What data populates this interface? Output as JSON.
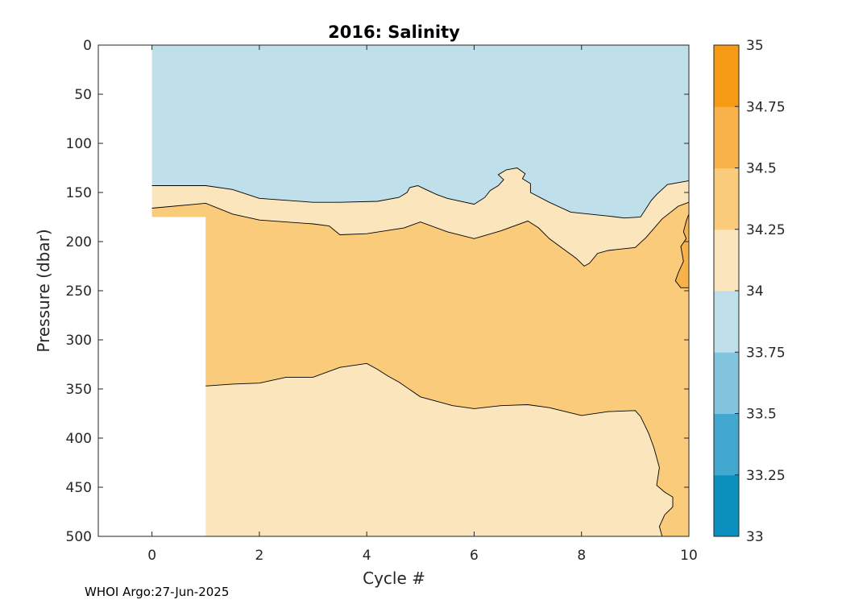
{
  "chart_data": {
    "type": "contour",
    "title": "2016:  Salinity",
    "xlabel": "Cycle #",
    "ylabel": "Pressure (dbar)",
    "xlim": [
      -1,
      10
    ],
    "ylim": [
      500,
      0
    ],
    "x_ticks": [
      0,
      2,
      4,
      6,
      8,
      10
    ],
    "y_ticks": [
      0,
      50,
      100,
      150,
      200,
      250,
      300,
      350,
      400,
      450,
      500
    ],
    "grid": false,
    "colorbar": {
      "levels": [
        33,
        33.25,
        33.5,
        33.75,
        34,
        34.25,
        34.5,
        34.75,
        35
      ],
      "tick_labels": [
        "33",
        "33.25",
        "33.5",
        "33.75",
        "34",
        "34.25",
        "34.5",
        "34.75",
        "35"
      ],
      "colors": [
        "#0b8fbd",
        "#42a8cf",
        "#82c4de",
        "#bfe0eb",
        "#fbe5bd",
        "#f9cb7b",
        "#f8b24a",
        "#f79b14"
      ]
    },
    "regions": [
      {
        "band": "33.75-34",
        "color": "#bfe0eb",
        "polygon": [
          [
            0,
            0
          ],
          [
            10,
            0
          ],
          [
            10,
            138
          ],
          [
            9.6,
            142
          ],
          [
            9.4,
            152
          ],
          [
            9.3,
            158
          ],
          [
            9.1,
            175
          ],
          [
            8.8,
            176
          ],
          [
            8.5,
            174
          ],
          [
            7.8,
            170
          ],
          [
            7.4,
            160
          ],
          [
            7.05,
            150
          ],
          [
            7.05,
            141
          ],
          [
            6.9,
            136
          ],
          [
            6.95,
            131
          ],
          [
            6.8,
            125
          ],
          [
            6.6,
            127
          ],
          [
            6.45,
            132
          ],
          [
            6.55,
            137
          ],
          [
            6.45,
            143
          ],
          [
            6.3,
            148
          ],
          [
            6.2,
            155
          ],
          [
            6.0,
            162
          ],
          [
            5.5,
            156
          ],
          [
            5.3,
            152
          ],
          [
            5.1,
            147
          ],
          [
            4.95,
            143
          ],
          [
            4.8,
            145
          ],
          [
            4.75,
            150
          ],
          [
            4.6,
            155
          ],
          [
            4.2,
            159
          ],
          [
            3.5,
            160
          ],
          [
            3.0,
            160
          ],
          [
            2.0,
            156
          ],
          [
            1.5,
            147
          ],
          [
            1.0,
            143
          ],
          [
            0.5,
            143
          ],
          [
            0,
            143
          ]
        ]
      },
      {
        "band": "34.25-34.5",
        "color": "#f9cb7b",
        "polygon": [
          [
            0,
            166
          ],
          [
            1.0,
            161
          ],
          [
            1.5,
            172
          ],
          [
            2.0,
            178
          ],
          [
            3.0,
            182
          ],
          [
            3.3,
            184
          ],
          [
            3.5,
            193
          ],
          [
            4.0,
            192
          ],
          [
            4.7,
            186
          ],
          [
            5.0,
            180
          ],
          [
            5.5,
            190
          ],
          [
            6.0,
            197
          ],
          [
            6.5,
            189
          ],
          [
            7.0,
            179
          ],
          [
            7.2,
            186
          ],
          [
            7.4,
            197
          ],
          [
            7.6,
            205
          ],
          [
            7.9,
            217
          ],
          [
            8.05,
            225
          ],
          [
            8.15,
            222
          ],
          [
            8.3,
            212
          ],
          [
            8.5,
            209
          ],
          [
            9.0,
            206
          ],
          [
            9.2,
            196
          ],
          [
            9.5,
            177
          ],
          [
            9.8,
            164
          ],
          [
            10,
            160
          ],
          [
            10,
            500
          ],
          [
            9.5,
            500
          ],
          [
            9.45,
            490
          ],
          [
            9.55,
            478
          ],
          [
            9.7,
            470
          ],
          [
            9.7,
            460
          ],
          [
            9.55,
            455
          ],
          [
            9.4,
            448
          ],
          [
            9.45,
            430
          ],
          [
            9.35,
            410
          ],
          [
            9.25,
            395
          ],
          [
            9.1,
            378
          ],
          [
            9.0,
            372
          ],
          [
            8.5,
            373
          ],
          [
            8.0,
            377
          ],
          [
            7.7,
            373
          ],
          [
            7.4,
            369
          ],
          [
            7.0,
            366
          ],
          [
            6.5,
            367
          ],
          [
            6.0,
            370
          ],
          [
            5.6,
            367
          ],
          [
            5.0,
            358
          ],
          [
            4.6,
            343
          ],
          [
            4.4,
            337
          ],
          [
            4.2,
            330
          ],
          [
            4.0,
            324
          ],
          [
            3.5,
            328
          ],
          [
            3.0,
            338
          ],
          [
            2.5,
            338
          ],
          [
            2.0,
            344
          ],
          [
            1.5,
            345
          ],
          [
            1.0,
            347
          ],
          [
            1.0,
            175
          ],
          [
            0,
            175
          ]
        ]
      },
      {
        "band": "34.5-34.75",
        "color": "#f8b24a",
        "polygon": [
          [
            10,
            172
          ],
          [
            9.95,
            179
          ],
          [
            9.9,
            190
          ],
          [
            9.95,
            197
          ],
          [
            9.85,
            205
          ],
          [
            9.9,
            220
          ],
          [
            9.8,
            232
          ],
          [
            9.75,
            240
          ],
          [
            9.85,
            247
          ],
          [
            10,
            247
          ]
        ]
      }
    ],
    "contour_lines": [
      [
        [
          0,
          143
        ],
        [
          0.5,
          143
        ],
        [
          1.0,
          143
        ],
        [
          1.5,
          147
        ],
        [
          2.0,
          156
        ],
        [
          3.0,
          160
        ],
        [
          3.5,
          160
        ],
        [
          4.2,
          159
        ],
        [
          4.6,
          155
        ],
        [
          4.75,
          150
        ],
        [
          4.8,
          145
        ],
        [
          4.95,
          143
        ],
        [
          5.1,
          147
        ],
        [
          5.3,
          152
        ],
        [
          5.5,
          156
        ],
        [
          6.0,
          162
        ],
        [
          6.2,
          155
        ],
        [
          6.3,
          148
        ],
        [
          6.45,
          143
        ],
        [
          6.55,
          137
        ],
        [
          6.45,
          132
        ],
        [
          6.6,
          127
        ],
        [
          6.8,
          125
        ],
        [
          6.95,
          131
        ],
        [
          6.9,
          136
        ],
        [
          7.05,
          141
        ],
        [
          7.05,
          150
        ],
        [
          7.4,
          160
        ],
        [
          7.8,
          170
        ],
        [
          8.5,
          174
        ],
        [
          8.8,
          176
        ],
        [
          9.1,
          175
        ],
        [
          9.3,
          158
        ],
        [
          9.4,
          152
        ],
        [
          9.6,
          142
        ],
        [
          10,
          138
        ]
      ],
      [
        [
          0,
          166
        ],
        [
          1.0,
          161
        ],
        [
          1.5,
          172
        ],
        [
          2.0,
          178
        ],
        [
          3.0,
          182
        ],
        [
          3.3,
          184
        ],
        [
          3.5,
          193
        ],
        [
          4.0,
          192
        ],
        [
          4.7,
          186
        ],
        [
          5.0,
          180
        ],
        [
          5.5,
          190
        ],
        [
          6.0,
          197
        ],
        [
          6.5,
          189
        ],
        [
          7.0,
          179
        ],
        [
          7.2,
          186
        ],
        [
          7.4,
          197
        ],
        [
          7.6,
          205
        ],
        [
          7.9,
          217
        ],
        [
          8.05,
          225
        ],
        [
          8.15,
          222
        ],
        [
          8.3,
          212
        ],
        [
          8.5,
          209
        ],
        [
          9.0,
          206
        ],
        [
          9.2,
          196
        ],
        [
          9.5,
          177
        ],
        [
          9.8,
          164
        ],
        [
          10,
          160
        ]
      ],
      [
        [
          1.0,
          347
        ],
        [
          1.5,
          345
        ],
        [
          2.0,
          344
        ],
        [
          2.5,
          338
        ],
        [
          3.0,
          338
        ],
        [
          3.5,
          328
        ],
        [
          4.0,
          324
        ],
        [
          4.2,
          330
        ],
        [
          4.4,
          337
        ],
        [
          4.6,
          343
        ],
        [
          5.0,
          358
        ],
        [
          5.6,
          367
        ],
        [
          6.0,
          370
        ],
        [
          6.5,
          367
        ],
        [
          7.0,
          366
        ],
        [
          7.4,
          369
        ],
        [
          7.7,
          373
        ],
        [
          8.0,
          377
        ],
        [
          8.5,
          373
        ],
        [
          9.0,
          372
        ],
        [
          9.1,
          378
        ],
        [
          9.25,
          395
        ],
        [
          9.35,
          410
        ],
        [
          9.45,
          430
        ],
        [
          9.4,
          448
        ],
        [
          9.55,
          455
        ],
        [
          9.7,
          460
        ],
        [
          9.7,
          470
        ],
        [
          9.55,
          478
        ],
        [
          9.45,
          490
        ],
        [
          9.5,
          500
        ]
      ],
      [
        [
          10,
          172
        ],
        [
          9.95,
          179
        ],
        [
          9.9,
          190
        ],
        [
          9.95,
          197
        ],
        [
          9.85,
          205
        ],
        [
          9.9,
          220
        ],
        [
          9.8,
          232
        ],
        [
          9.75,
          240
        ],
        [
          9.85,
          247
        ],
        [
          10,
          247
        ]
      ]
    ],
    "data_region": {
      "x_start_top": 0,
      "x_start_below_175dbar": 1,
      "x_end": 10,
      "background_band": "34-34.25",
      "background_color": "#fbe5bd"
    }
  },
  "footer": "WHOI Argo:27-Jun-2025"
}
